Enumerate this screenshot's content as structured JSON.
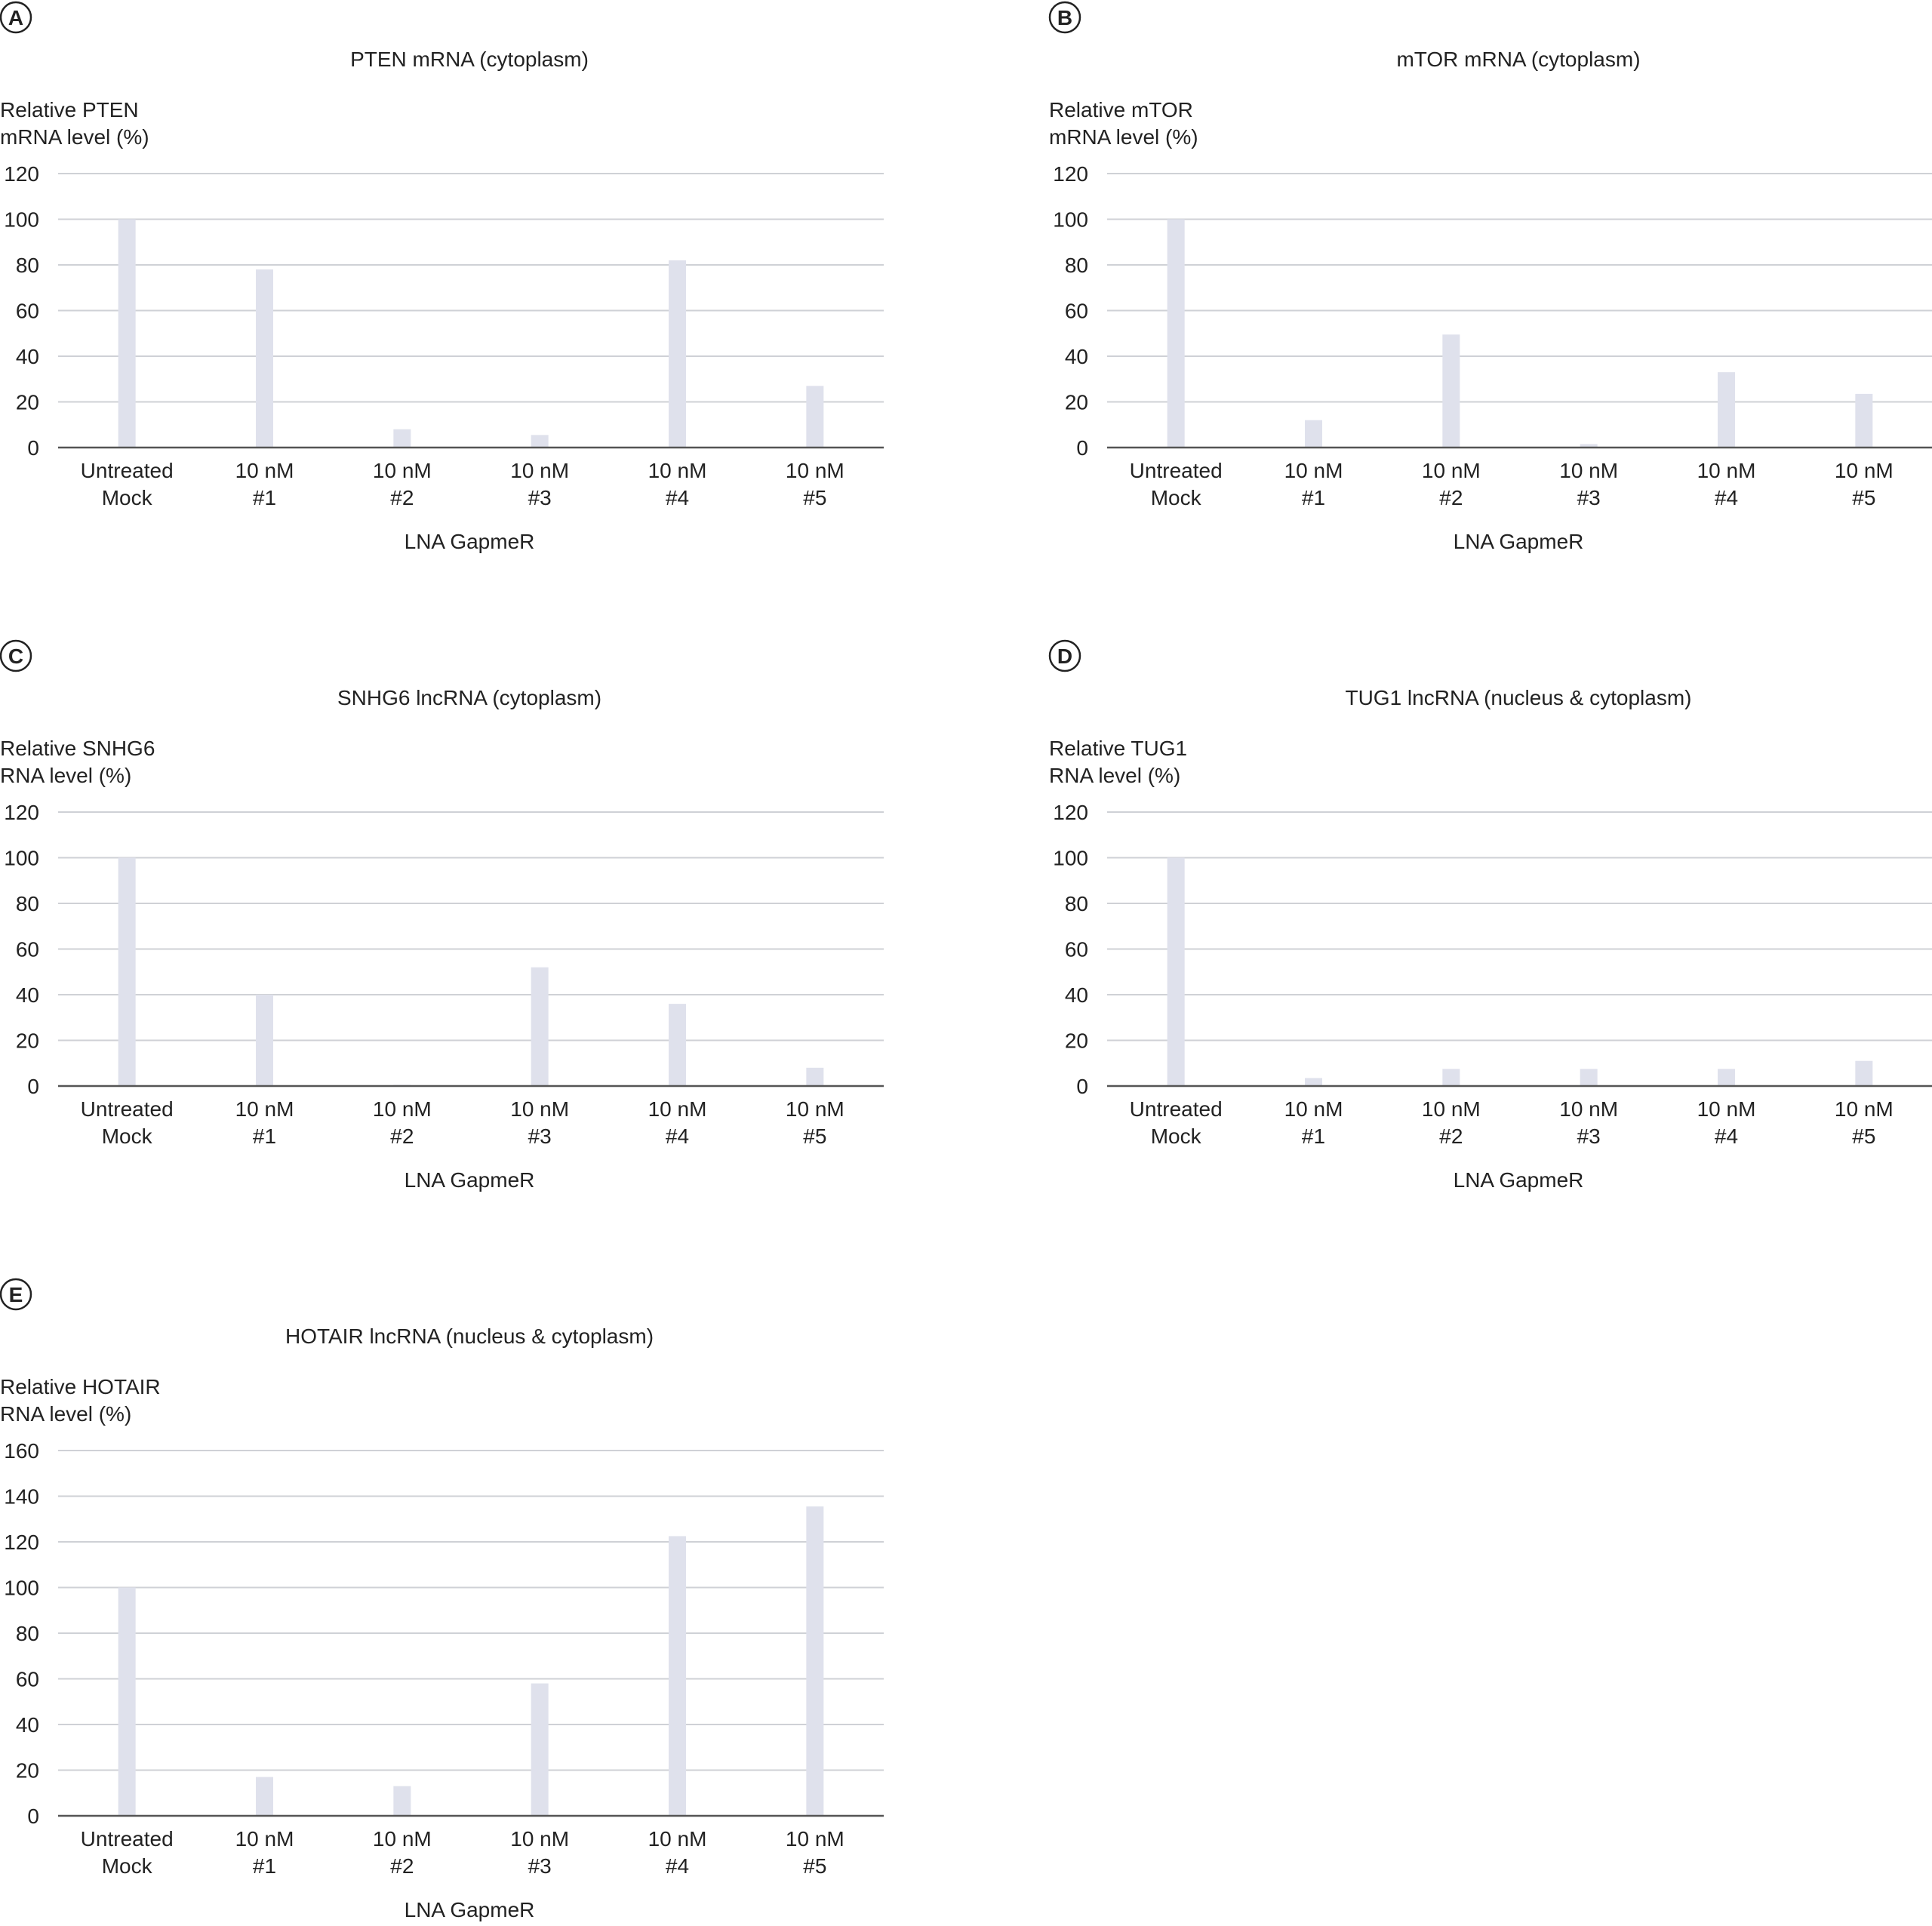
{
  "colors": {
    "bar": "#dfe1ec",
    "grid": "#cfd1d6",
    "axis": "#555555",
    "text": "#222222"
  },
  "chart_data": [
    {
      "panel": "A",
      "type": "bar",
      "title": "PTEN mRNA (cytoplasm)",
      "ylabel": [
        "Relative PTEN",
        "mRNA level (%)"
      ],
      "xlabel": "LNA GapmeR",
      "categories": [
        [
          "Untreated",
          "Mock"
        ],
        [
          "10 nM",
          "#1"
        ],
        [
          "10 nM",
          "#2"
        ],
        [
          "10 nM",
          "#3"
        ],
        [
          "10 nM",
          "#4"
        ],
        [
          "10 nM",
          "#5"
        ]
      ],
      "values": [
        100,
        78,
        8,
        5.5,
        82,
        27
      ],
      "ylim": [
        0,
        120
      ],
      "yticks": [
        0,
        20,
        40,
        60,
        80,
        100,
        120
      ],
      "grid": true
    },
    {
      "panel": "B",
      "type": "bar",
      "title": "mTOR mRNA (cytoplasm)",
      "ylabel": [
        "Relative mTOR",
        "mRNA level (%)"
      ],
      "xlabel": "LNA GapmeR",
      "categories": [
        [
          "Untreated",
          "Mock"
        ],
        [
          "10 nM",
          "#1"
        ],
        [
          "10 nM",
          "#2"
        ],
        [
          "10 nM",
          "#3"
        ],
        [
          "10 nM",
          "#4"
        ],
        [
          "10 nM",
          "#5"
        ]
      ],
      "values": [
        100,
        12,
        49.5,
        1.5,
        33,
        23.5
      ],
      "ylim": [
        0,
        120
      ],
      "yticks": [
        0,
        20,
        40,
        60,
        80,
        100,
        120
      ],
      "grid": true
    },
    {
      "panel": "C",
      "type": "bar",
      "title": "SNHG6 lncRNA (cytoplasm)",
      "ylabel": [
        "Relative SNHG6",
        "RNA level (%)"
      ],
      "xlabel": "LNA GapmeR",
      "categories": [
        [
          "Untreated",
          "Mock"
        ],
        [
          "10 nM",
          "#1"
        ],
        [
          "10 nM",
          "#2"
        ],
        [
          "10 nM",
          "#3"
        ],
        [
          "10 nM",
          "#4"
        ],
        [
          "10 nM",
          "#5"
        ]
      ],
      "values": [
        100,
        40,
        0.5,
        52,
        36,
        8
      ],
      "ylim": [
        0,
        120
      ],
      "yticks": [
        0,
        20,
        40,
        60,
        80,
        100,
        120
      ],
      "grid": true
    },
    {
      "panel": "D",
      "type": "bar",
      "title": "TUG1 lncRNA (nucleus & cytoplasm)",
      "ylabel": [
        "Relative TUG1",
        "RNA level (%)"
      ],
      "xlabel": "LNA GapmeR",
      "categories": [
        [
          "Untreated",
          "Mock"
        ],
        [
          "10 nM",
          "#1"
        ],
        [
          "10 nM",
          "#2"
        ],
        [
          "10 nM",
          "#3"
        ],
        [
          "10 nM",
          "#4"
        ],
        [
          "10 nM",
          "#5"
        ]
      ],
      "values": [
        100,
        3.5,
        7.5,
        7.5,
        7.5,
        11
      ],
      "ylim": [
        0,
        120
      ],
      "yticks": [
        0,
        20,
        40,
        60,
        80,
        100,
        120
      ],
      "grid": true
    },
    {
      "panel": "E",
      "type": "bar",
      "title": "HOTAIR lncRNA (nucleus & cytoplasm)",
      "ylabel": [
        "Relative HOTAIR",
        "RNA level (%)"
      ],
      "xlabel": "LNA GapmeR",
      "categories": [
        [
          "Untreated",
          "Mock"
        ],
        [
          "10 nM",
          "#1"
        ],
        [
          "10 nM",
          "#2"
        ],
        [
          "10 nM",
          "#3"
        ],
        [
          "10 nM",
          "#4"
        ],
        [
          "10 nM",
          "#5"
        ]
      ],
      "values": [
        100,
        17,
        13,
        58,
        122.5,
        135.5
      ],
      "ylim": [
        0,
        160
      ],
      "yticks": [
        0,
        20,
        40,
        60,
        80,
        100,
        120,
        140,
        160
      ],
      "grid": true
    }
  ]
}
